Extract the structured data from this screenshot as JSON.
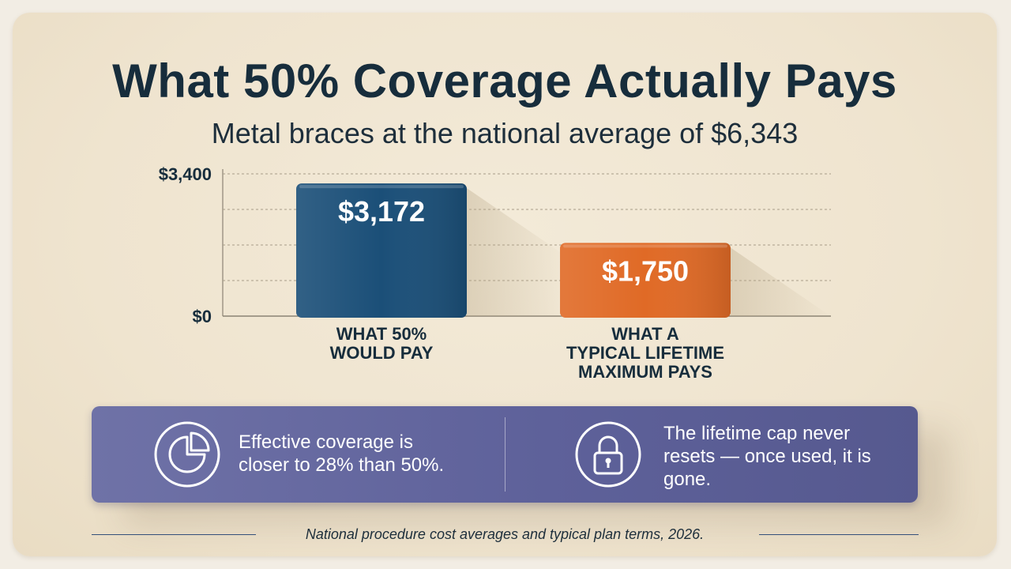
{
  "title": "What 50% Coverage Actually Pays",
  "subtitle": "Metal braces at the national average of $6,343",
  "chart_data": {
    "type": "bar",
    "categories": [
      [
        "WHAT 50%",
        "WOULD PAY"
      ],
      [
        "WHAT A",
        "TYPICAL LIFETIME",
        "MAXIMUM PAYS"
      ]
    ],
    "values": [
      3172,
      1750
    ],
    "value_labels": [
      "$3,172",
      "$1,750"
    ],
    "bar_colors": [
      "#1b4f78",
      "#e06a26"
    ],
    "y_ticks": [
      {
        "value": 0,
        "label": "$0"
      },
      {
        "value": 3400,
        "label": "$3,400"
      }
    ],
    "ylim": [
      0,
      3400
    ],
    "grid": true
  },
  "callouts": [
    {
      "icon": "pie-chart-icon",
      "text": "Effective coverage is closer to 28% than 50%."
    },
    {
      "icon": "padlock-icon",
      "text": "The lifetime cap never resets — once used, it is gone."
    }
  ],
  "footer": "National procedure cost averages and typical plan terms, 2026."
}
